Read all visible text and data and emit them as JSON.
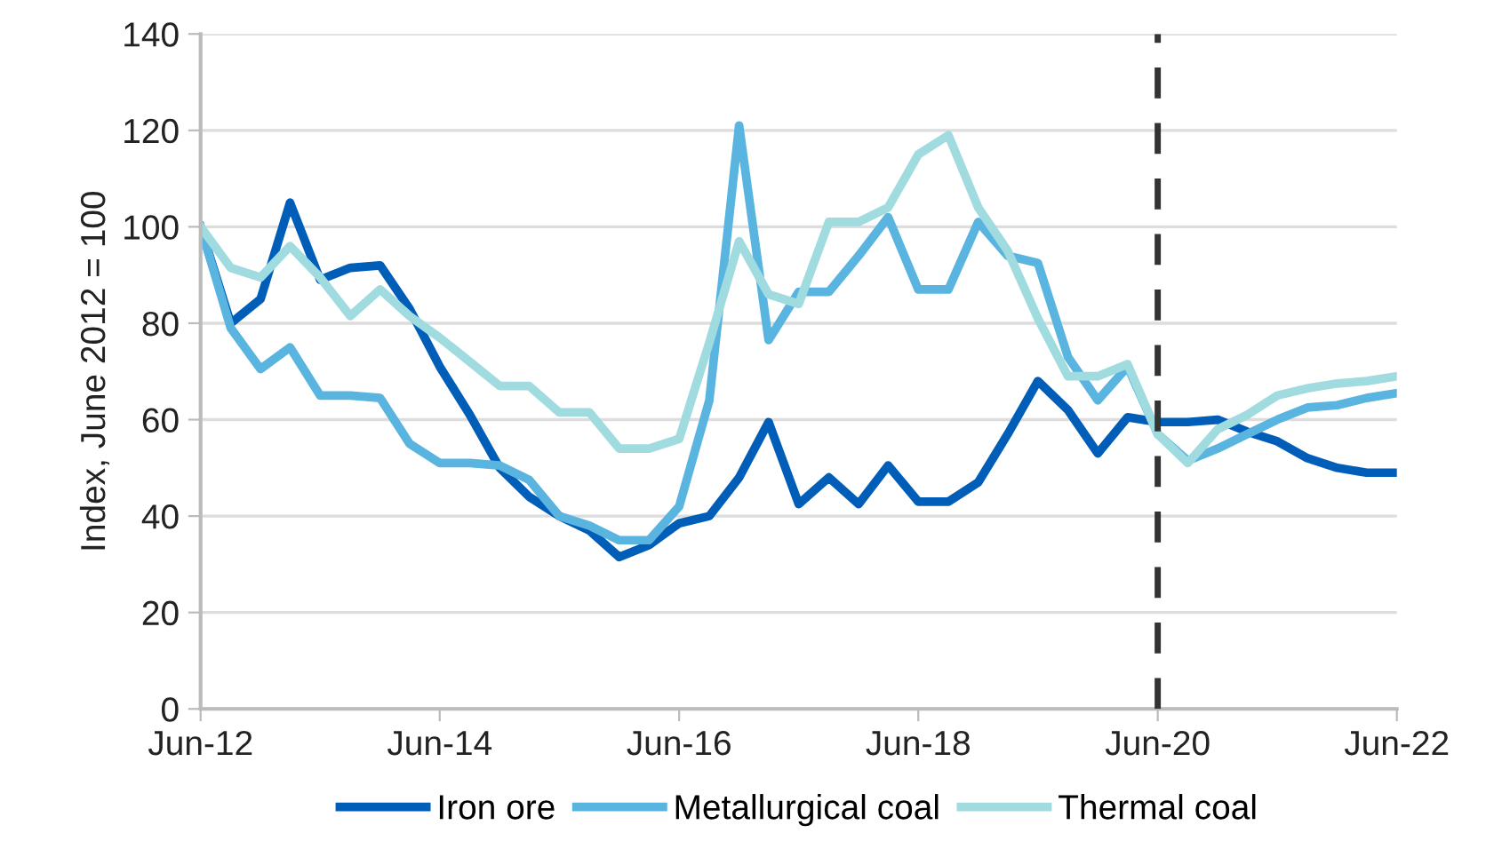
{
  "chart_data": {
    "type": "line",
    "ylabel": "Index, June 2012 = 100",
    "x": [
      "2012-06",
      "2012-09",
      "2012-12",
      "2013-03",
      "2013-06",
      "2013-09",
      "2013-12",
      "2014-03",
      "2014-06",
      "2014-09",
      "2014-12",
      "2015-03",
      "2015-06",
      "2015-09",
      "2015-12",
      "2016-03",
      "2016-06",
      "2016-09",
      "2016-12",
      "2017-03",
      "2017-06",
      "2017-09",
      "2017-12",
      "2018-03",
      "2018-06",
      "2018-09",
      "2018-12",
      "2019-03",
      "2019-06",
      "2019-09",
      "2019-12",
      "2020-03",
      "2020-06",
      "2020-09",
      "2020-12",
      "2021-03",
      "2021-06",
      "2021-09",
      "2021-12",
      "2022-03",
      "2022-06"
    ],
    "series": [
      {
        "name": "Iron ore",
        "color": "#005eb8",
        "values": [
          100,
          80,
          85,
          105,
          89,
          91.5,
          92,
          83,
          71,
          61,
          50,
          44,
          40,
          37,
          31.5,
          34,
          38.5,
          40,
          48,
          59.5,
          42.5,
          48,
          42.5,
          50.5,
          43,
          43,
          47,
          57,
          68,
          62,
          53,
          60.5,
          59.5,
          59.5,
          60,
          57.5,
          55.5,
          52,
          50,
          49,
          49
        ]
      },
      {
        "name": "Metallurgical coal",
        "color": "#5ab4e0",
        "values": [
          100,
          79,
          70.5,
          75,
          65,
          65,
          64.5,
          55,
          51,
          51,
          50.5,
          47.5,
          40,
          38,
          35,
          35,
          42,
          64,
          121,
          76.5,
          86.5,
          86.5,
          94,
          102,
          87,
          87,
          101,
          94,
          92.5,
          73,
          64,
          71,
          57,
          51.5,
          54,
          57,
          60,
          62.5,
          63,
          64.5,
          65.5
        ]
      },
      {
        "name": "Thermal coal",
        "color": "#a0dbe0",
        "values": [
          100,
          91.5,
          89.5,
          96,
          89.5,
          81.5,
          87,
          81.5,
          77,
          72,
          67,
          67,
          61.5,
          61.5,
          54,
          54,
          56,
          76,
          97,
          86,
          84,
          101,
          101,
          104,
          115,
          119,
          104,
          95,
          81,
          69,
          69,
          71.5,
          57,
          51,
          58,
          61,
          65,
          66.5,
          67.5,
          68,
          69
        ]
      }
    ],
    "xlim": [
      "2012-06",
      "2022-06"
    ],
    "xticks": [
      {
        "value": "2012-06",
        "label": "Jun-12"
      },
      {
        "value": "2014-06",
        "label": "Jun-14"
      },
      {
        "value": "2016-06",
        "label": "Jun-16"
      },
      {
        "value": "2018-06",
        "label": "Jun-18"
      },
      {
        "value": "2020-06",
        "label": "Jun-20"
      },
      {
        "value": "2022-06",
        "label": "Jun-22"
      }
    ],
    "ylim": [
      0,
      140
    ],
    "yticks": [
      0,
      20,
      40,
      60,
      80,
      100,
      120,
      140
    ],
    "ref_lines": [
      {
        "axis": "x",
        "value": "2020-06",
        "label": null,
        "color": "#333333",
        "line_style": "dashed"
      }
    ],
    "grid": "y",
    "legend": "bottom",
    "marker": "none",
    "line_style": "solid"
  }
}
